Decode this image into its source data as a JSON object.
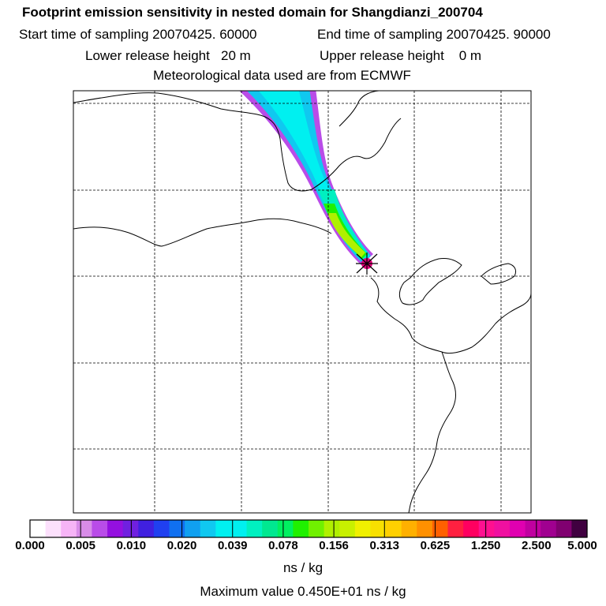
{
  "title": "Footprint emission sensitivity in nested domain for Shangdianzi_200704",
  "sampling": {
    "start": "Start time of sampling 20070425. 60000",
    "end": "End time of sampling 20070425. 90000"
  },
  "release": {
    "lower": "Lower release height   20 m",
    "upper": "Upper release height    0 m"
  },
  "met_data": "Meteorological data used are from ECMWF",
  "colorbar": {
    "tick_labels": [
      "0.000",
      "0.005",
      "0.010",
      "0.020",
      "0.039",
      "0.078",
      "0.156",
      "0.313",
      "0.625",
      "1.250",
      "2.500",
      "5.000"
    ],
    "colors": [
      "#ffffff",
      "#fce0fc",
      "#f6b4f6",
      "#d88ce8",
      "#b94ce8",
      "#9410e0",
      "#7020e0",
      "#4020e0",
      "#2040f0",
      "#1070f0",
      "#10a0f0",
      "#10c8f0",
      "#00f0f0",
      "#00f0f0",
      "#00f0c0",
      "#00e890",
      "#00f060",
      "#20f000",
      "#70f000",
      "#b0f000",
      "#c8f000",
      "#f0f000",
      "#f8e000",
      "#ffd000",
      "#ffb000",
      "#ff9000",
      "#ff6000",
      "#ff2040",
      "#ff0060",
      "#ff1090",
      "#f010a0",
      "#e000b0",
      "#c000a0",
      "#a00090",
      "#800070",
      "#400040"
    ],
    "units": "ns / kg"
  },
  "max_value": "Maximum value  0.450E+01 ns / kg",
  "map": {
    "receptor_marker": "receptor-star",
    "plume_colors": [
      "#b94ce8",
      "#10c8f0",
      "#00f0f0",
      "#00f0c0",
      "#20f000",
      "#b0f000",
      "#f0f000"
    ],
    "receptor_color": "#e0007a"
  }
}
